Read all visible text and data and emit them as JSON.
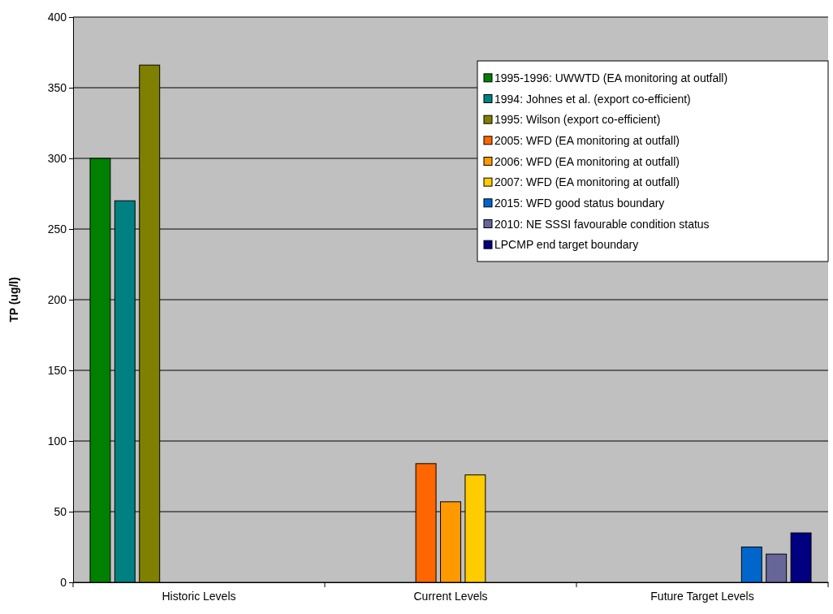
{
  "chart_data": {
    "type": "bar",
    "ylabel": "TP (ug/l)",
    "categories": [
      "Historic Levels",
      "Current Levels",
      "Future Target Levels"
    ],
    "ylim": [
      0,
      400
    ],
    "yticks": [
      0,
      50,
      100,
      150,
      200,
      250,
      300,
      350,
      400
    ],
    "grid": "y",
    "legend": "top right",
    "series": [
      {
        "name": "1995-1996: UWWTD (EA monitoring at outfall)",
        "color": "#008000",
        "values": [
          300,
          null,
          null
        ]
      },
      {
        "name": "1994: Johnes et al. (export co-efficient)",
        "color": "#008080",
        "values": [
          270,
          null,
          null
        ]
      },
      {
        "name": "1995: Wilson (export co-efficient)",
        "color": "#808000",
        "values": [
          366,
          null,
          null
        ]
      },
      {
        "name": "2005: WFD (EA monitoring at outfall)",
        "color": "#ff6600",
        "values": [
          null,
          84,
          null
        ]
      },
      {
        "name": "2006: WFD (EA monitoring at outfall)",
        "color": "#ff9900",
        "values": [
          null,
          57,
          null
        ]
      },
      {
        "name": "2007: WFD (EA monitoring at outfall)",
        "color": "#ffcc00",
        "values": [
          null,
          76,
          null
        ]
      },
      {
        "name": "2015: WFD good status boundary",
        "color": "#0066cc",
        "values": [
          null,
          null,
          25
        ]
      },
      {
        "name": "2010: NE SSSI favourable condition status",
        "color": "#666699",
        "values": [
          null,
          null,
          20
        ]
      },
      {
        "name": "LPCMP end target boundary",
        "color": "#000080",
        "values": [
          null,
          null,
          35
        ]
      }
    ]
  }
}
